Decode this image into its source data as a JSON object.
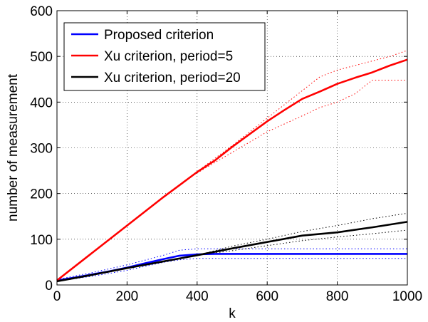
{
  "chart_data": {
    "type": "line",
    "title": "",
    "xlabel": "k",
    "ylabel": "number of measurement",
    "xlim": [
      0,
      1000
    ],
    "ylim": [
      0,
      600
    ],
    "xticks": [
      0,
      200,
      400,
      600,
      800,
      1000
    ],
    "yticks": [
      0,
      100,
      200,
      300,
      400,
      500,
      600
    ],
    "grid": true,
    "legend_position": "top-left",
    "series": [
      {
        "name": "Proposed criterion",
        "color": "#0000ff",
        "x": [
          0,
          50,
          100,
          150,
          200,
          250,
          300,
          350,
          400,
          450,
          500,
          600,
          700,
          800,
          900,
          1000
        ],
        "y": [
          10,
          16,
          23,
          30,
          38,
          47,
          56,
          64,
          67,
          68,
          68,
          68,
          68,
          68,
          68,
          68
        ],
        "upper": {
          "x": [
            0,
            100,
            200,
            300,
            350,
            400,
            500,
            600,
            700,
            800,
            900,
            1000
          ],
          "y": [
            12,
            27,
            44,
            64,
            76,
            79,
            79,
            79,
            79,
            79,
            79,
            79
          ]
        },
        "lower": {
          "x": [
            0,
            100,
            200,
            300,
            350,
            400,
            500,
            600,
            700,
            800,
            900,
            1000
          ],
          "y": [
            8,
            19,
            32,
            49,
            55,
            58,
            58,
            58,
            58,
            58,
            58,
            58
          ]
        }
      },
      {
        "name": "Xu criterion, period=5",
        "color": "#ff0000",
        "x": [
          0,
          100,
          200,
          300,
          400,
          450,
          500,
          550,
          600,
          650,
          700,
          750,
          800,
          850,
          900,
          950,
          1000
        ],
        "y": [
          10,
          70,
          130,
          190,
          247,
          272,
          302,
          330,
          358,
          383,
          407,
          423,
          440,
          453,
          465,
          480,
          493
        ],
        "upper": {
          "x": [
            400,
            500,
            600,
            700,
            750,
            800,
            850,
            900,
            950,
            1000
          ],
          "y": [
            248,
            305,
            365,
            425,
            455,
            470,
            480,
            490,
            500,
            513
          ]
        },
        "lower": {
          "x": [
            400,
            500,
            600,
            700,
            750,
            800,
            850,
            900,
            950,
            1000
          ],
          "y": [
            245,
            290,
            335,
            370,
            388,
            400,
            418,
            448,
            448,
            448
          ]
        }
      },
      {
        "name": "Xu criterion, period=20",
        "color": "#000000",
        "x": [
          0,
          100,
          200,
          300,
          400,
          500,
          600,
          700,
          800,
          900,
          1000
        ],
        "y": [
          8,
          22,
          37,
          51,
          65,
          80,
          94,
          108,
          115,
          126,
          138
        ],
        "upper": {
          "x": [
            400,
            500,
            600,
            700,
            800,
            900,
            1000
          ],
          "y": [
            65,
            85,
            100,
            117,
            130,
            145,
            157
          ]
        },
        "lower": {
          "x": [
            400,
            500,
            600,
            700,
            800,
            900,
            1000
          ],
          "y": [
            65,
            75,
            86,
            97,
            105,
            112,
            120
          ]
        }
      }
    ]
  }
}
